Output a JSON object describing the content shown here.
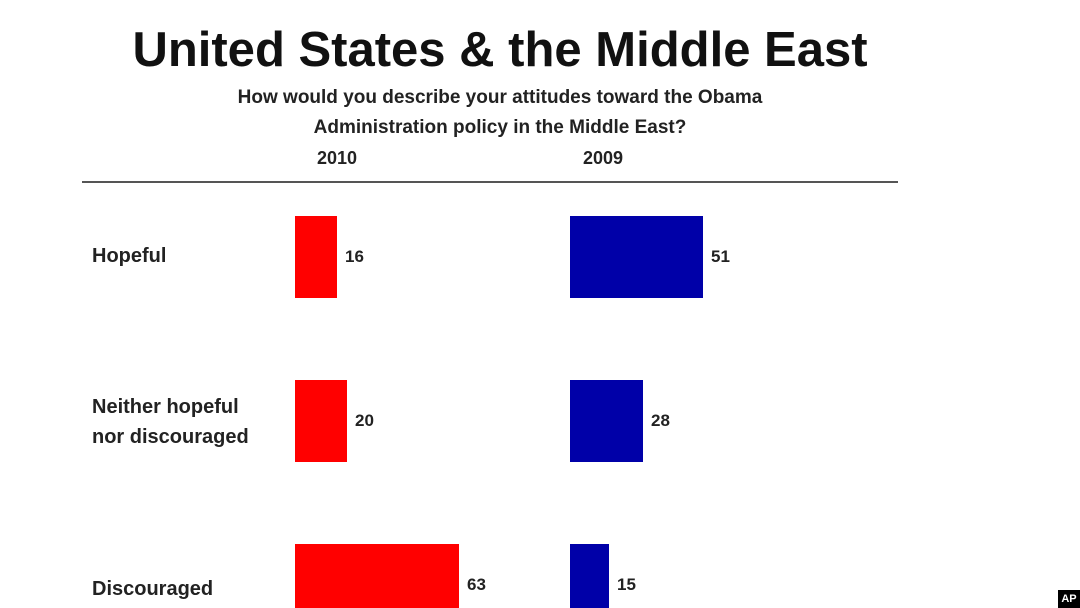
{
  "chart_data": {
    "type": "bar",
    "orientation": "horizontal",
    "title": "United States & the Middle East",
    "subtitle_lines": [
      "How would you describe your attitudes toward the Obama",
      "Administration policy in the Middle East?"
    ],
    "categories": [
      "Hopeful",
      "Neither hopeful nor discouraged",
      "Discouraged"
    ],
    "category_lines": [
      [
        "Hopeful"
      ],
      [
        "Neither hopeful",
        "nor discouraged"
      ],
      [
        "Discouraged"
      ]
    ],
    "series": [
      {
        "name": "2010",
        "values": [
          16,
          20,
          63
        ],
        "color": "#ff0000"
      },
      {
        "name": "2009",
        "values": [
          51,
          28,
          15
        ],
        "color": "#0000a8"
      }
    ],
    "grid": false,
    "legend": "column headers above bars"
  },
  "watermark": "AP"
}
